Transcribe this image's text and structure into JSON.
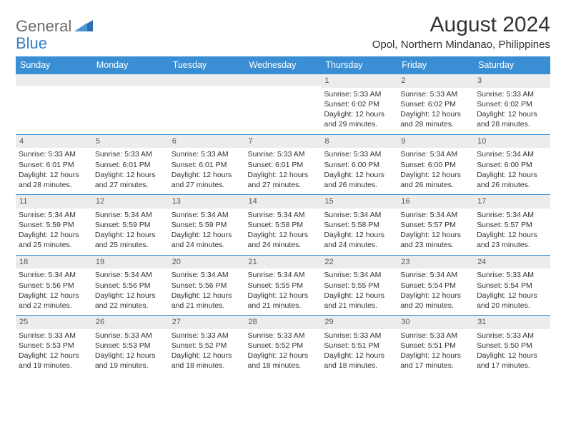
{
  "brand": {
    "part1": "General",
    "part2": "Blue"
  },
  "title": "August 2024",
  "subtitle": "Opol, Northern Mindanao, Philippines",
  "colors": {
    "header_bg": "#3a8fd4",
    "header_text": "#ffffff",
    "daynum_bg": "#ececec",
    "row_border": "#3a8fd4",
    "brand_gray": "#6b6b6b",
    "brand_blue": "#3a7fc4"
  },
  "day_headers": [
    "Sunday",
    "Monday",
    "Tuesday",
    "Wednesday",
    "Thursday",
    "Friday",
    "Saturday"
  ],
  "weeks": [
    [
      {
        "day": "",
        "sunrise": "",
        "sunset": "",
        "daylight": ""
      },
      {
        "day": "",
        "sunrise": "",
        "sunset": "",
        "daylight": ""
      },
      {
        "day": "",
        "sunrise": "",
        "sunset": "",
        "daylight": ""
      },
      {
        "day": "",
        "sunrise": "",
        "sunset": "",
        "daylight": ""
      },
      {
        "day": "1",
        "sunrise": "Sunrise: 5:33 AM",
        "sunset": "Sunset: 6:02 PM",
        "daylight": "Daylight: 12 hours and 29 minutes."
      },
      {
        "day": "2",
        "sunrise": "Sunrise: 5:33 AM",
        "sunset": "Sunset: 6:02 PM",
        "daylight": "Daylight: 12 hours and 28 minutes."
      },
      {
        "day": "3",
        "sunrise": "Sunrise: 5:33 AM",
        "sunset": "Sunset: 6:02 PM",
        "daylight": "Daylight: 12 hours and 28 minutes."
      }
    ],
    [
      {
        "day": "4",
        "sunrise": "Sunrise: 5:33 AM",
        "sunset": "Sunset: 6:01 PM",
        "daylight": "Daylight: 12 hours and 28 minutes."
      },
      {
        "day": "5",
        "sunrise": "Sunrise: 5:33 AM",
        "sunset": "Sunset: 6:01 PM",
        "daylight": "Daylight: 12 hours and 27 minutes."
      },
      {
        "day": "6",
        "sunrise": "Sunrise: 5:33 AM",
        "sunset": "Sunset: 6:01 PM",
        "daylight": "Daylight: 12 hours and 27 minutes."
      },
      {
        "day": "7",
        "sunrise": "Sunrise: 5:33 AM",
        "sunset": "Sunset: 6:01 PM",
        "daylight": "Daylight: 12 hours and 27 minutes."
      },
      {
        "day": "8",
        "sunrise": "Sunrise: 5:33 AM",
        "sunset": "Sunset: 6:00 PM",
        "daylight": "Daylight: 12 hours and 26 minutes."
      },
      {
        "day": "9",
        "sunrise": "Sunrise: 5:34 AM",
        "sunset": "Sunset: 6:00 PM",
        "daylight": "Daylight: 12 hours and 26 minutes."
      },
      {
        "day": "10",
        "sunrise": "Sunrise: 5:34 AM",
        "sunset": "Sunset: 6:00 PM",
        "daylight": "Daylight: 12 hours and 26 minutes."
      }
    ],
    [
      {
        "day": "11",
        "sunrise": "Sunrise: 5:34 AM",
        "sunset": "Sunset: 5:59 PM",
        "daylight": "Daylight: 12 hours and 25 minutes."
      },
      {
        "day": "12",
        "sunrise": "Sunrise: 5:34 AM",
        "sunset": "Sunset: 5:59 PM",
        "daylight": "Daylight: 12 hours and 25 minutes."
      },
      {
        "day": "13",
        "sunrise": "Sunrise: 5:34 AM",
        "sunset": "Sunset: 5:59 PM",
        "daylight": "Daylight: 12 hours and 24 minutes."
      },
      {
        "day": "14",
        "sunrise": "Sunrise: 5:34 AM",
        "sunset": "Sunset: 5:58 PM",
        "daylight": "Daylight: 12 hours and 24 minutes."
      },
      {
        "day": "15",
        "sunrise": "Sunrise: 5:34 AM",
        "sunset": "Sunset: 5:58 PM",
        "daylight": "Daylight: 12 hours and 24 minutes."
      },
      {
        "day": "16",
        "sunrise": "Sunrise: 5:34 AM",
        "sunset": "Sunset: 5:57 PM",
        "daylight": "Daylight: 12 hours and 23 minutes."
      },
      {
        "day": "17",
        "sunrise": "Sunrise: 5:34 AM",
        "sunset": "Sunset: 5:57 PM",
        "daylight": "Daylight: 12 hours and 23 minutes."
      }
    ],
    [
      {
        "day": "18",
        "sunrise": "Sunrise: 5:34 AM",
        "sunset": "Sunset: 5:56 PM",
        "daylight": "Daylight: 12 hours and 22 minutes."
      },
      {
        "day": "19",
        "sunrise": "Sunrise: 5:34 AM",
        "sunset": "Sunset: 5:56 PM",
        "daylight": "Daylight: 12 hours and 22 minutes."
      },
      {
        "day": "20",
        "sunrise": "Sunrise: 5:34 AM",
        "sunset": "Sunset: 5:56 PM",
        "daylight": "Daylight: 12 hours and 21 minutes."
      },
      {
        "day": "21",
        "sunrise": "Sunrise: 5:34 AM",
        "sunset": "Sunset: 5:55 PM",
        "daylight": "Daylight: 12 hours and 21 minutes."
      },
      {
        "day": "22",
        "sunrise": "Sunrise: 5:34 AM",
        "sunset": "Sunset: 5:55 PM",
        "daylight": "Daylight: 12 hours and 21 minutes."
      },
      {
        "day": "23",
        "sunrise": "Sunrise: 5:34 AM",
        "sunset": "Sunset: 5:54 PM",
        "daylight": "Daylight: 12 hours and 20 minutes."
      },
      {
        "day": "24",
        "sunrise": "Sunrise: 5:33 AM",
        "sunset": "Sunset: 5:54 PM",
        "daylight": "Daylight: 12 hours and 20 minutes."
      }
    ],
    [
      {
        "day": "25",
        "sunrise": "Sunrise: 5:33 AM",
        "sunset": "Sunset: 5:53 PM",
        "daylight": "Daylight: 12 hours and 19 minutes."
      },
      {
        "day": "26",
        "sunrise": "Sunrise: 5:33 AM",
        "sunset": "Sunset: 5:53 PM",
        "daylight": "Daylight: 12 hours and 19 minutes."
      },
      {
        "day": "27",
        "sunrise": "Sunrise: 5:33 AM",
        "sunset": "Sunset: 5:52 PM",
        "daylight": "Daylight: 12 hours and 18 minutes."
      },
      {
        "day": "28",
        "sunrise": "Sunrise: 5:33 AM",
        "sunset": "Sunset: 5:52 PM",
        "daylight": "Daylight: 12 hours and 18 minutes."
      },
      {
        "day": "29",
        "sunrise": "Sunrise: 5:33 AM",
        "sunset": "Sunset: 5:51 PM",
        "daylight": "Daylight: 12 hours and 18 minutes."
      },
      {
        "day": "30",
        "sunrise": "Sunrise: 5:33 AM",
        "sunset": "Sunset: 5:51 PM",
        "daylight": "Daylight: 12 hours and 17 minutes."
      },
      {
        "day": "31",
        "sunrise": "Sunrise: 5:33 AM",
        "sunset": "Sunset: 5:50 PM",
        "daylight": "Daylight: 12 hours and 17 minutes."
      }
    ]
  ]
}
